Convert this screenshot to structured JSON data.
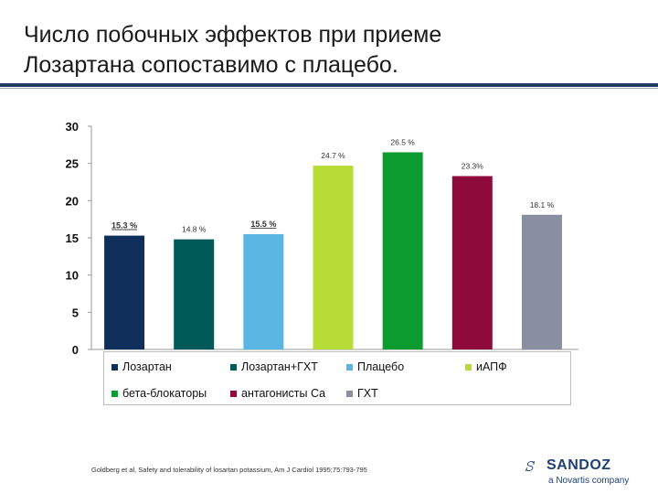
{
  "slide": {
    "title_line1": "Число побочных эффектов при приеме",
    "title_line2": "Лозартана сопоставимо с плацебо.",
    "citation": "Goldberg et al, Safety and tolerability of losartan potassium, Am J Cardiol 1995;75:793-795"
  },
  "brand": {
    "mark": "ꕶ",
    "name": "SANDOZ",
    "sub": "a Novartis company"
  },
  "chart_data": {
    "type": "bar",
    "categories": [
      "Лозартан",
      "Лозартан+ГХТ",
      "Плацебо",
      "иАПФ",
      "бета-блокаторы",
      "антагонисты  Са",
      "ГХТ"
    ],
    "values": [
      15.3,
      14.8,
      15.5,
      24.7,
      26.5,
      23.3,
      18.1
    ],
    "value_labels": [
      "15.3 %",
      "14.8 %",
      "15.5 %",
      "24.7 %",
      "26.5 %",
      "23.3%",
      "18.1 %"
    ],
    "colors": [
      "#0f2f5a",
      "#005a58",
      "#59b6e2",
      "#b6dc35",
      "#0c9b2f",
      "#8e0a3a",
      "#8a8ea1"
    ],
    "ylim": [
      0,
      30
    ],
    "yticks": [
      "0",
      "5",
      "10",
      "15",
      "20",
      "25",
      "30"
    ],
    "ytick_values": [
      0,
      5,
      10,
      15,
      20,
      25,
      30
    ],
    "grid": false,
    "legend_position": "bottom",
    "title": "",
    "xlabel": "",
    "ylabel": ""
  }
}
